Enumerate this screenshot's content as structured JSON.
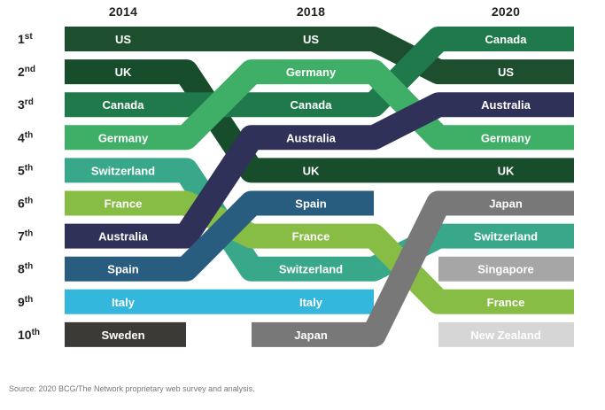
{
  "chart_data": {
    "type": "bump",
    "years": [
      "2014",
      "2018",
      "2020"
    ],
    "ranks": [
      {
        "num": "1",
        "suffix": "st"
      },
      {
        "num": "2",
        "suffix": "nd"
      },
      {
        "num": "3",
        "suffix": "rd"
      },
      {
        "num": "4",
        "suffix": "th"
      },
      {
        "num": "5",
        "suffix": "th"
      },
      {
        "num": "6",
        "suffix": "th"
      },
      {
        "num": "7",
        "suffix": "th"
      },
      {
        "num": "8",
        "suffix": "th"
      },
      {
        "num": "9",
        "suffix": "th"
      },
      {
        "num": "10",
        "suffix": "th"
      }
    ],
    "series": [
      {
        "name": "US",
        "color": "#1d4f2e",
        "ranks": {
          "2014": 1,
          "2018": 1,
          "2020": 2
        }
      },
      {
        "name": "UK",
        "color": "#174d2b",
        "ranks": {
          "2014": 2,
          "2018": 5,
          "2020": 5
        }
      },
      {
        "name": "Canada",
        "color": "#20794a",
        "ranks": {
          "2014": 3,
          "2018": 3,
          "2020": 1
        }
      },
      {
        "name": "Germany",
        "color": "#3faf67",
        "ranks": {
          "2014": 4,
          "2018": 2,
          "2020": 4
        }
      },
      {
        "name": "Switzerland",
        "color": "#39a88a",
        "ranks": {
          "2014": 5,
          "2018": 8,
          "2020": 7
        }
      },
      {
        "name": "France",
        "color": "#88bd45",
        "ranks": {
          "2014": 6,
          "2018": 7,
          "2020": 9
        }
      },
      {
        "name": "Australia",
        "color": "#2f3158",
        "ranks": {
          "2014": 7,
          "2018": 4,
          "2020": 3
        }
      },
      {
        "name": "Spain",
        "color": "#295d80",
        "ranks": {
          "2014": 8,
          "2018": 6,
          "2020": null
        }
      },
      {
        "name": "Italy",
        "color": "#33b7dc",
        "ranks": {
          "2014": 9,
          "2018": 9,
          "2020": null
        }
      },
      {
        "name": "Sweden",
        "color": "#3b3a36",
        "ranks": {
          "2014": 10,
          "2018": null,
          "2020": null
        }
      },
      {
        "name": "Japan",
        "color": "#787878",
        "ranks": {
          "2014": null,
          "2018": 10,
          "2020": 6
        }
      },
      {
        "name": "Singapore",
        "color": "#a6a6a6",
        "ranks": {
          "2014": null,
          "2018": null,
          "2020": 8
        }
      },
      {
        "name": "New Zealand",
        "color": "#d6d6d6",
        "ranks": {
          "2014": null,
          "2018": null,
          "2020": 10
        }
      }
    ]
  },
  "source": "Source: 2020 BCG/The Network proprietary web survey and analysis."
}
